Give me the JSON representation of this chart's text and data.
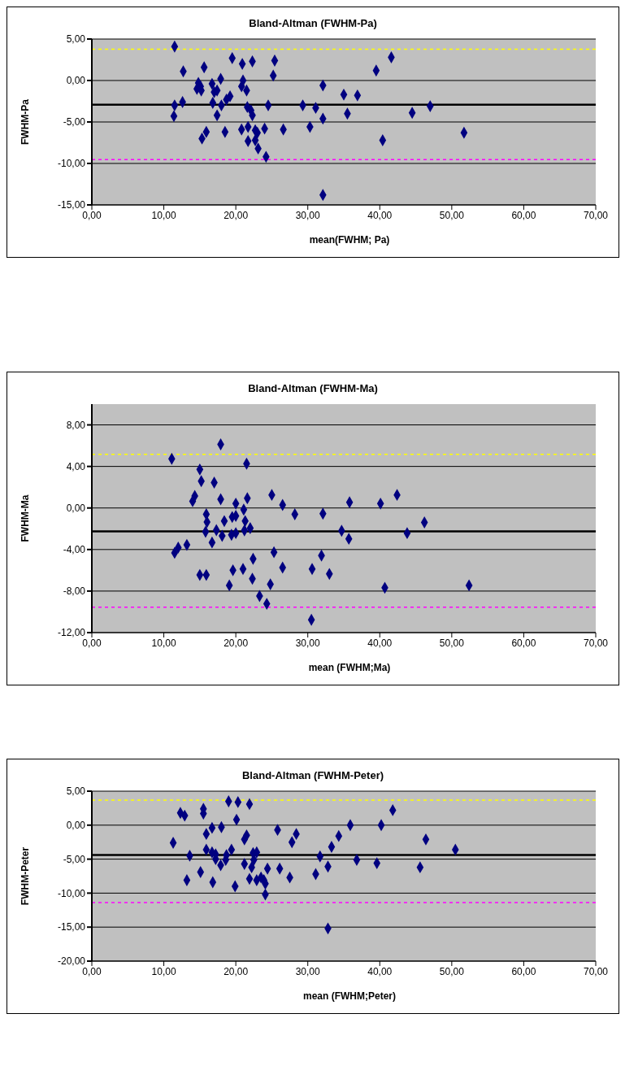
{
  "chart_data": [
    {
      "type": "scatter",
      "title": "Bland-Altman (FWHM-Pa)",
      "xlabel": "mean(FWHM; Pa)",
      "ylabel": "FWHM-Pa",
      "marker": "diamond",
      "grid": "y",
      "legend": false,
      "xlim": [
        0,
        70
      ],
      "xticks": [
        {
          "value": 0,
          "label": "0,00"
        },
        {
          "value": 10,
          "label": "10,00"
        },
        {
          "value": 20,
          "label": "20,00"
        },
        {
          "value": 30,
          "label": "30,00"
        },
        {
          "value": 40,
          "label": "40,00"
        },
        {
          "value": 50,
          "label": "50,00"
        },
        {
          "value": 60,
          "label": "60,00"
        },
        {
          "value": 70,
          "label": "70,00"
        }
      ],
      "ylim": [
        -15,
        5
      ],
      "yticks": [
        {
          "value": -15,
          "label": "-15,00"
        },
        {
          "value": -10,
          "label": "-10,00"
        },
        {
          "value": -5,
          "label": "-5,00"
        },
        {
          "value": 0,
          "label": "0,00"
        },
        {
          "value": 5,
          "label": "5,00"
        }
      ],
      "ref_lines": [
        {
          "axis": "y",
          "value": -2.91,
          "color": "#000000",
          "line_style": "solid"
        },
        {
          "axis": "y",
          "value": 3.78,
          "color": "#ffff00",
          "line_style": "dashed"
        },
        {
          "axis": "y",
          "value": -9.53,
          "color": "#ff00ff",
          "line_style": "dashed"
        }
      ],
      "series": [
        {
          "color": "#000080",
          "x": [
            11.5,
            12.7,
            15.6,
            14.8,
            14.6,
            15.1,
            15.2,
            16.7,
            17.9,
            17.0,
            17.4,
            19.5,
            20.9,
            22.3,
            25.4,
            25.2,
            21.0,
            20.8,
            21.5,
            12.6,
            11.5,
            11.4,
            16.8,
            18.0,
            17.4,
            18.7,
            19.2,
            21.6,
            22.1,
            22.3,
            24.5,
            29.3,
            31.1,
            32.1,
            32.1,
            30.3,
            35.0,
            36.9,
            35.5,
            39.5,
            41.6,
            44.5,
            47.0,
            40.4,
            51.7,
            15.9,
            15.3,
            18.5,
            20.8,
            21.7,
            22.7,
            23.0,
            24.0,
            26.6,
            21.7,
            22.7,
            23.1,
            24.2,
            32.1
          ],
          "values": [
            4.1,
            1.1,
            1.6,
            -0.3,
            -1.0,
            -0.7,
            -1.2,
            -0.4,
            0.2,
            -1.4,
            -1.2,
            2.7,
            2.0,
            2.3,
            2.4,
            0.6,
            0,
            -0.7,
            -1.2,
            -2.6,
            -3.0,
            -4.3,
            -2.7,
            -3.0,
            -4.2,
            -2.3,
            -1.9,
            -3.2,
            -3.6,
            -4.2,
            -3.0,
            -3.0,
            -3.3,
            -0.6,
            -4.6,
            -5.6,
            -1.7,
            -1.8,
            -4.0,
            1.2,
            2.8,
            -3.9,
            -3.1,
            -7.2,
            -6.3,
            -6.2,
            -7.0,
            -6.2,
            -5.9,
            -5.6,
            -6.0,
            -6.3,
            -5.8,
            -5.9,
            -7.3,
            -7.2,
            -8.2,
            -9.2,
            -13.8
          ]
        }
      ]
    },
    {
      "type": "scatter",
      "title": "Bland-Altman (FWHM-Ma)",
      "xlabel": "mean (FWHM;Ma)",
      "ylabel": "FWHM-Ma",
      "marker": "diamond",
      "grid": "y",
      "legend": false,
      "xlim": [
        0,
        70
      ],
      "xticks": [
        {
          "value": 0,
          "label": "0,00"
        },
        {
          "value": 10,
          "label": "10,00"
        },
        {
          "value": 20,
          "label": "20,00"
        },
        {
          "value": 30,
          "label": "30,00"
        },
        {
          "value": 40,
          "label": "40,00"
        },
        {
          "value": 50,
          "label": "50,00"
        },
        {
          "value": 60,
          "label": "60,00"
        },
        {
          "value": 70,
          "label": "70,00"
        }
      ],
      "ylim": [
        -12,
        10
      ],
      "yticks": [
        {
          "value": -12,
          "label": "-12,00"
        },
        {
          "value": -8,
          "label": "-8,00"
        },
        {
          "value": -4,
          "label": "-4,00"
        },
        {
          "value": 0,
          "label": "0,00"
        },
        {
          "value": 4,
          "label": "4,00"
        },
        {
          "value": 8,
          "label": "8,00"
        }
      ],
      "ref_lines": [
        {
          "axis": "y",
          "value": -2.26,
          "color": "#000000",
          "line_style": "solid"
        },
        {
          "axis": "y",
          "value": 5.16,
          "color": "#ffff00",
          "line_style": "dashed"
        },
        {
          "axis": "y",
          "value": -9.55,
          "color": "#ff00ff",
          "line_style": "dashed"
        }
      ],
      "series": [
        {
          "color": "#000080",
          "x": [
            17.9,
            11.1,
            21.5,
            15.0,
            15.2,
            17.0,
            14.3,
            14.0,
            17.9,
            20.0,
            21.6,
            25.0,
            26.5,
            28.2,
            32.1,
            35.8,
            40.1,
            42.4,
            46.2,
            43.8,
            34.7,
            35.7,
            21.1,
            15.9,
            16.0,
            18.4,
            19.5,
            20.0,
            21.3,
            15.8,
            17.3,
            18.1,
            19.4,
            20.0,
            21.2,
            22.0,
            16.7,
            13.2,
            12.0,
            11.5,
            25.3,
            22.4,
            31.9,
            15.0,
            15.9,
            19.6,
            21.0,
            26.5,
            30.6,
            33.0,
            22.3,
            19.1,
            24.8,
            40.7,
            52.4,
            23.3,
            24.3,
            30.5
          ],
          "values": [
            6.13,
            4.74,
            4.26,
            3.71,
            2.58,
            2.45,
            1.16,
            0.65,
            0.84,
            0.42,
            0.94,
            1.26,
            0.29,
            -0.61,
            -0.55,
            0.55,
            0.42,
            1.26,
            -1.39,
            -2.42,
            -2.19,
            -2.97,
            -0.16,
            -0.61,
            -1.35,
            -1.26,
            -0.87,
            -0.77,
            -1.26,
            -2.29,
            -2.13,
            -2.68,
            -2.58,
            -2.42,
            -2.16,
            -1.94,
            -3.32,
            -3.55,
            -3.81,
            -4.32,
            -4.26,
            -4.9,
            -4.58,
            -6.45,
            -6.45,
            -6.0,
            -5.87,
            -5.74,
            -5.87,
            -6.35,
            -6.81,
            -7.45,
            -7.35,
            -7.68,
            -7.45,
            -8.48,
            -9.23,
            -10.77
          ]
        }
      ]
    },
    {
      "type": "scatter",
      "title": "Bland-Altman (FWHM-Peter)",
      "xlabel": "mean (FWHM;Peter)",
      "ylabel": "FWHM-Peter",
      "marker": "diamond",
      "grid": "y",
      "legend": false,
      "xlim": [
        0,
        70
      ],
      "xticks": [
        {
          "value": 0,
          "label": "0,00"
        },
        {
          "value": 10,
          "label": "10,00"
        },
        {
          "value": 20,
          "label": "20,00"
        },
        {
          "value": 30,
          "label": "30,00"
        },
        {
          "value": 40,
          "label": "40,00"
        },
        {
          "value": 50,
          "label": "50,00"
        },
        {
          "value": 60,
          "label": "60,00"
        },
        {
          "value": 70,
          "label": "70,00"
        }
      ],
      "ylim": [
        -20,
        5
      ],
      "yticks": [
        {
          "value": -20,
          "label": "-20,00"
        },
        {
          "value": -15,
          "label": "-15,00"
        },
        {
          "value": -10,
          "label": "-10,00"
        },
        {
          "value": -5,
          "label": "-5,00"
        },
        {
          "value": 0,
          "label": "0,00"
        },
        {
          "value": 5,
          "label": "5,00"
        }
      ],
      "ref_lines": [
        {
          "axis": "y",
          "value": -4.38,
          "color": "#000000",
          "line_style": "solid"
        },
        {
          "axis": "y",
          "value": 3.68,
          "color": "#ffff00",
          "line_style": "dashed"
        },
        {
          "axis": "y",
          "value": -11.39,
          "color": "#ff00ff",
          "line_style": "dashed"
        }
      ],
      "series": [
        {
          "color": "#000080",
          "x": [
            12.3,
            12.9,
            15.5,
            15.5,
            19.0,
            20.3,
            21.9,
            20.1,
            41.8,
            11.3,
            13.6,
            13.2,
            15.1,
            16.8,
            15.9,
            16.7,
            18.0,
            15.9,
            16.7,
            17.2,
            17.2,
            18.7,
            18.6,
            19.4,
            17.9,
            19.9,
            21.2,
            21.5,
            21.2,
            22.2,
            22.4,
            22.9,
            22.5,
            21.9,
            22.9,
            23.5,
            23.9,
            24.1,
            24.1,
            24.4,
            25.8,
            26.1,
            27.8,
            28.4,
            27.5,
            31.1,
            31.7,
            32.8,
            33.3,
            34.3,
            32.8,
            35.9,
            36.8,
            39.6,
            40.2,
            45.6,
            46.4,
            50.5
          ],
          "values": [
            1.8,
            1.4,
            2.4,
            1.7,
            3.5,
            3.4,
            3.1,
            0.8,
            2.2,
            -2.6,
            -4.5,
            -8.1,
            -6.9,
            -8.4,
            -1.3,
            -0.4,
            -0.3,
            -3.6,
            -4.0,
            -4.3,
            -5.0,
            -4.4,
            -5.1,
            -3.6,
            -5.9,
            -9.0,
            -2.1,
            -1.5,
            -5.7,
            -6.2,
            -4.1,
            -4.0,
            -5.1,
            -7.9,
            -8.1,
            -7.7,
            -8.1,
            -8.6,
            -10.2,
            -6.4,
            -0.7,
            -6.4,
            -2.5,
            -1.3,
            -7.7,
            -7.2,
            -4.6,
            -6.1,
            -3.2,
            -1.6,
            -15.2,
            0,
            -5.1,
            -5.6,
            0,
            -6.2,
            -2.1,
            -3.6
          ]
        }
      ]
    }
  ]
}
